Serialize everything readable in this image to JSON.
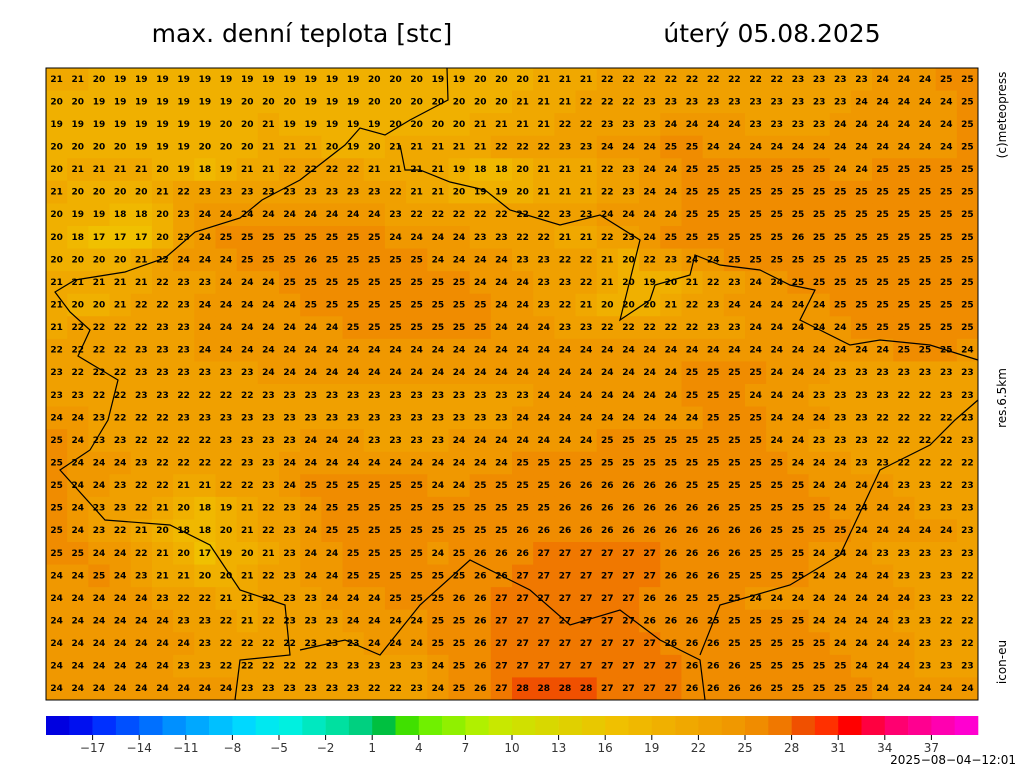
{
  "header": {
    "title": "max. denní teplota [stc]",
    "date": "úterý 05.08.2025"
  },
  "side": {
    "copyright": "(c)meteopress",
    "resolution": "res.6.5km",
    "model": "icon-eu"
  },
  "footer": {
    "timestamp": "2025−08−04−12:01"
  },
  "map": {
    "rows": [
      [
        21,
        21,
        20,
        19,
        19,
        19,
        19,
        19,
        19,
        19,
        19,
        19,
        19,
        19,
        19,
        20,
        20,
        20,
        19,
        19,
        20,
        20,
        20,
        21,
        21,
        21,
        22,
        22,
        22,
        22,
        22,
        22,
        22,
        22,
        22,
        23,
        23,
        23,
        23,
        24,
        24,
        24,
        25,
        25
      ],
      [
        20,
        20,
        19,
        19,
        19,
        19,
        19,
        19,
        19,
        20,
        20,
        20,
        19,
        19,
        19,
        20,
        20,
        20,
        20,
        20,
        20,
        20,
        21,
        21,
        21,
        22,
        22,
        22,
        23,
        23,
        23,
        23,
        23,
        23,
        23,
        23,
        23,
        23,
        24,
        24,
        24,
        24,
        24,
        25
      ],
      [
        19,
        19,
        19,
        19,
        19,
        19,
        19,
        19,
        20,
        20,
        21,
        19,
        19,
        19,
        19,
        19,
        20,
        20,
        20,
        20,
        21,
        21,
        21,
        21,
        22,
        22,
        23,
        23,
        23,
        24,
        24,
        24,
        24,
        23,
        23,
        23,
        23,
        24,
        24,
        24,
        24,
        24,
        24,
        25
      ],
      [
        20,
        20,
        20,
        20,
        19,
        19,
        19,
        20,
        20,
        20,
        21,
        21,
        21,
        20,
        19,
        20,
        21,
        21,
        21,
        21,
        21,
        22,
        22,
        22,
        23,
        23,
        24,
        24,
        24,
        25,
        25,
        24,
        24,
        24,
        24,
        24,
        24,
        24,
        24,
        24,
        24,
        24,
        24,
        25
      ],
      [
        20,
        21,
        21,
        21,
        21,
        20,
        19,
        18,
        19,
        21,
        21,
        22,
        22,
        22,
        22,
        21,
        21,
        21,
        21,
        19,
        18,
        18,
        20,
        21,
        21,
        21,
        22,
        23,
        24,
        24,
        25,
        25,
        25,
        25,
        25,
        25,
        25,
        24,
        24,
        25,
        25,
        25,
        25,
        25
      ],
      [
        21,
        20,
        20,
        20,
        20,
        21,
        22,
        23,
        23,
        23,
        23,
        23,
        23,
        23,
        23,
        23,
        22,
        21,
        21,
        20,
        19,
        19,
        20,
        21,
        21,
        21,
        22,
        23,
        24,
        24,
        25,
        25,
        25,
        25,
        25,
        25,
        25,
        25,
        25,
        25,
        25,
        25,
        25,
        25
      ],
      [
        20,
        19,
        19,
        18,
        18,
        20,
        23,
        24,
        24,
        24,
        24,
        24,
        24,
        24,
        24,
        24,
        23,
        22,
        22,
        22,
        22,
        22,
        22,
        22,
        23,
        23,
        24,
        24,
        24,
        24,
        25,
        25,
        25,
        25,
        25,
        25,
        25,
        25,
        25,
        25,
        25,
        25,
        25,
        25
      ],
      [
        20,
        18,
        17,
        17,
        17,
        20,
        23,
        24,
        25,
        25,
        25,
        25,
        25,
        25,
        25,
        25,
        24,
        24,
        24,
        24,
        23,
        23,
        22,
        22,
        21,
        21,
        22,
        23,
        24,
        25,
        25,
        25,
        25,
        25,
        25,
        26,
        25,
        25,
        25,
        25,
        25,
        25,
        25,
        25
      ],
      [
        20,
        20,
        20,
        20,
        21,
        22,
        24,
        24,
        24,
        25,
        25,
        25,
        26,
        25,
        25,
        25,
        25,
        25,
        24,
        24,
        24,
        24,
        23,
        23,
        22,
        22,
        21,
        20,
        22,
        23,
        24,
        24,
        25,
        25,
        25,
        25,
        25,
        25,
        25,
        25,
        25,
        25,
        25,
        25
      ],
      [
        21,
        21,
        21,
        21,
        21,
        22,
        23,
        23,
        24,
        24,
        24,
        25,
        25,
        25,
        25,
        25,
        25,
        25,
        25,
        25,
        24,
        24,
        24,
        23,
        23,
        22,
        21,
        20,
        19,
        20,
        21,
        22,
        23,
        24,
        24,
        25,
        25,
        25,
        25,
        25,
        25,
        25,
        25,
        25
      ],
      [
        21,
        20,
        20,
        21,
        22,
        22,
        23,
        24,
        24,
        24,
        24,
        24,
        25,
        25,
        25,
        25,
        25,
        25,
        25,
        25,
        25,
        24,
        24,
        23,
        22,
        21,
        20,
        20,
        20,
        21,
        22,
        23,
        24,
        24,
        24,
        24,
        24,
        25,
        25,
        25,
        25,
        25,
        25,
        25
      ],
      [
        21,
        22,
        22,
        22,
        22,
        23,
        23,
        24,
        24,
        24,
        24,
        24,
        24,
        24,
        25,
        25,
        25,
        25,
        25,
        25,
        25,
        24,
        24,
        24,
        23,
        23,
        22,
        22,
        22,
        22,
        22,
        23,
        23,
        24,
        24,
        24,
        24,
        24,
        25,
        25,
        25,
        25,
        25,
        25
      ],
      [
        22,
        22,
        22,
        22,
        23,
        23,
        23,
        24,
        24,
        24,
        24,
        24,
        24,
        24,
        24,
        24,
        24,
        24,
        24,
        24,
        24,
        24,
        24,
        24,
        24,
        24,
        24,
        24,
        24,
        24,
        24,
        24,
        24,
        24,
        24,
        24,
        24,
        24,
        24,
        24,
        25,
        25,
        25,
        24
      ],
      [
        23,
        22,
        22,
        22,
        23,
        23,
        23,
        23,
        23,
        23,
        24,
        24,
        24,
        24,
        24,
        24,
        24,
        24,
        24,
        24,
        24,
        24,
        24,
        24,
        24,
        24,
        24,
        24,
        24,
        24,
        25,
        25,
        25,
        25,
        24,
        24,
        24,
        23,
        23,
        23,
        23,
        23,
        23,
        23
      ],
      [
        23,
        23,
        22,
        22,
        23,
        23,
        22,
        22,
        22,
        22,
        23,
        23,
        23,
        23,
        23,
        23,
        23,
        23,
        23,
        23,
        23,
        23,
        23,
        24,
        24,
        24,
        24,
        24,
        24,
        24,
        25,
        25,
        25,
        24,
        24,
        24,
        23,
        23,
        23,
        23,
        22,
        22,
        23,
        23
      ],
      [
        24,
        24,
        23,
        22,
        22,
        22,
        23,
        23,
        23,
        23,
        23,
        23,
        23,
        23,
        23,
        23,
        23,
        23,
        23,
        23,
        23,
        23,
        24,
        24,
        24,
        24,
        24,
        24,
        24,
        24,
        24,
        25,
        25,
        25,
        24,
        24,
        24,
        23,
        23,
        22,
        22,
        22,
        22,
        23
      ],
      [
        25,
        24,
        23,
        23,
        22,
        22,
        22,
        22,
        23,
        23,
        23,
        23,
        24,
        24,
        24,
        23,
        23,
        23,
        23,
        24,
        24,
        24,
        24,
        24,
        24,
        24,
        25,
        25,
        25,
        25,
        25,
        25,
        25,
        25,
        24,
        24,
        23,
        23,
        23,
        22,
        22,
        22,
        22,
        23
      ],
      [
        25,
        24,
        24,
        24,
        23,
        22,
        22,
        22,
        22,
        23,
        23,
        24,
        24,
        24,
        24,
        24,
        24,
        24,
        24,
        24,
        24,
        24,
        25,
        25,
        25,
        25,
        25,
        25,
        25,
        25,
        25,
        25,
        25,
        25,
        25,
        24,
        24,
        24,
        23,
        23,
        22,
        22,
        22,
        22
      ],
      [
        25,
        24,
        24,
        23,
        22,
        22,
        21,
        21,
        22,
        22,
        23,
        24,
        25,
        25,
        25,
        25,
        25,
        25,
        24,
        24,
        25,
        25,
        25,
        25,
        26,
        26,
        26,
        26,
        26,
        26,
        25,
        25,
        25,
        25,
        25,
        25,
        24,
        24,
        24,
        24,
        23,
        23,
        22,
        23
      ],
      [
        25,
        24,
        23,
        23,
        22,
        21,
        20,
        18,
        19,
        21,
        22,
        23,
        24,
        25,
        25,
        25,
        25,
        25,
        25,
        25,
        25,
        25,
        25,
        25,
        26,
        26,
        26,
        26,
        26,
        26,
        26,
        26,
        25,
        25,
        25,
        25,
        25,
        24,
        24,
        24,
        24,
        23,
        23,
        23
      ],
      [
        25,
        24,
        23,
        22,
        21,
        20,
        18,
        18,
        20,
        21,
        22,
        23,
        24,
        25,
        25,
        25,
        25,
        25,
        25,
        25,
        25,
        25,
        26,
        26,
        26,
        26,
        26,
        26,
        26,
        26,
        26,
        26,
        26,
        26,
        25,
        25,
        25,
        25,
        24,
        24,
        24,
        24,
        24,
        23
      ],
      [
        25,
        25,
        24,
        24,
        22,
        21,
        20,
        17,
        19,
        20,
        21,
        23,
        24,
        24,
        25,
        25,
        25,
        25,
        24,
        25,
        26,
        26,
        26,
        27,
        27,
        27,
        27,
        27,
        27,
        26,
        26,
        26,
        26,
        25,
        25,
        25,
        24,
        24,
        24,
        23,
        23,
        23,
        23,
        23
      ],
      [
        24,
        24,
        25,
        24,
        23,
        21,
        21,
        20,
        20,
        21,
        22,
        23,
        24,
        24,
        25,
        25,
        25,
        25,
        25,
        25,
        26,
        26,
        27,
        27,
        27,
        27,
        27,
        27,
        27,
        26,
        26,
        26,
        25,
        25,
        25,
        25,
        24,
        24,
        24,
        24,
        23,
        23,
        23,
        22
      ],
      [
        24,
        24,
        24,
        24,
        24,
        23,
        22,
        22,
        21,
        21,
        22,
        23,
        23,
        24,
        24,
        24,
        25,
        25,
        25,
        26,
        26,
        27,
        27,
        27,
        27,
        27,
        27,
        27,
        26,
        26,
        25,
        25,
        25,
        24,
        24,
        24,
        24,
        24,
        24,
        24,
        24,
        23,
        23,
        22
      ],
      [
        24,
        24,
        24,
        24,
        24,
        24,
        23,
        23,
        22,
        21,
        22,
        23,
        23,
        23,
        24,
        24,
        24,
        24,
        25,
        25,
        26,
        27,
        27,
        27,
        27,
        27,
        27,
        27,
        26,
        26,
        26,
        25,
        25,
        25,
        25,
        25,
        24,
        24,
        24,
        24,
        23,
        23,
        22,
        22
      ],
      [
        24,
        24,
        24,
        24,
        24,
        24,
        24,
        23,
        22,
        22,
        22,
        22,
        23,
        23,
        23,
        24,
        24,
        24,
        25,
        25,
        26,
        27,
        27,
        27,
        27,
        27,
        27,
        27,
        27,
        26,
        26,
        26,
        25,
        25,
        25,
        25,
        25,
        24,
        24,
        24,
        24,
        23,
        23,
        22
      ],
      [
        24,
        24,
        24,
        24,
        24,
        24,
        23,
        23,
        22,
        22,
        22,
        22,
        22,
        23,
        23,
        23,
        23,
        23,
        24,
        25,
        26,
        27,
        27,
        27,
        27,
        27,
        27,
        27,
        27,
        27,
        26,
        26,
        26,
        25,
        25,
        25,
        25,
        25,
        24,
        24,
        24,
        23,
        23,
        23
      ],
      [
        24,
        24,
        24,
        24,
        24,
        24,
        24,
        24,
        24,
        23,
        23,
        23,
        23,
        23,
        23,
        22,
        22,
        23,
        24,
        25,
        26,
        27,
        28,
        28,
        28,
        28,
        27,
        27,
        27,
        27,
        26,
        26,
        26,
        26,
        25,
        25,
        25,
        25,
        25,
        24,
        24,
        24,
        24,
        24
      ]
    ]
  },
  "colorbar": {
    "lim": [
      -20,
      40
    ],
    "ticks": [
      {
        "value": -17,
        "label": "−17"
      },
      {
        "value": -14,
        "label": "−14"
      },
      {
        "value": -11,
        "label": "−11"
      },
      {
        "value": -8,
        "label": "−8"
      },
      {
        "value": -5,
        "label": "−5"
      },
      {
        "value": -2,
        "label": "−2"
      },
      1,
      4,
      7,
      10,
      13,
      16,
      19,
      22,
      25,
      28,
      31,
      34,
      37
    ],
    "colors": [
      "#0000e0",
      "#0010f0",
      "#0030ff",
      "#0050ff",
      "#0070ff",
      "#0090ff",
      "#00a8ff",
      "#00c0ff",
      "#00d8ff",
      "#00e8f0",
      "#00f0e0",
      "#00e8c0",
      "#00e0a0",
      "#00d080",
      "#00c040",
      "#40e000",
      "#70f000",
      "#90f000",
      "#b0f000",
      "#c8e800",
      "#d0e000",
      "#d8d800",
      "#e0d000",
      "#e8c800",
      "#f0c000",
      "#f0b800",
      "#f0b000",
      "#f0a800",
      "#f0a000",
      "#f09800",
      "#f08c00",
      "#f07800",
      "#f05000",
      "#ff3000",
      "#ff0000",
      "#ff0040",
      "#ff0070",
      "#ff0090",
      "#ff00b0",
      "#ff00d0"
    ]
  }
}
